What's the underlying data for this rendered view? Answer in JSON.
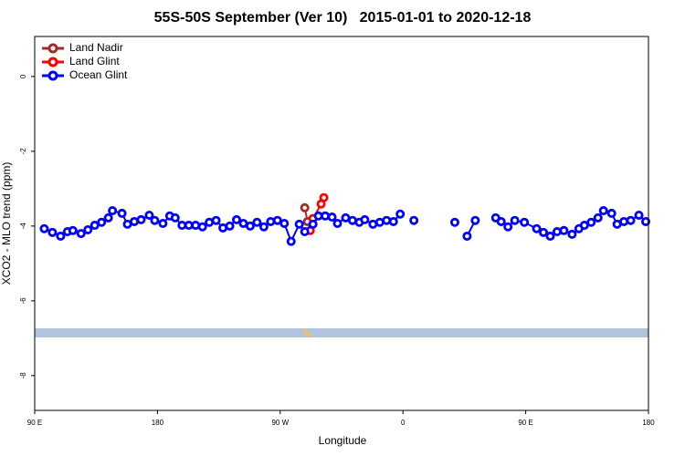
{
  "chart_data": {
    "type": "line",
    "title": "55S-50S September (Ver 10)   2015-01-01 to 2020-12-18",
    "x_label": "Longitude",
    "y_label": "XCO2 - MLO trend (ppm)",
    "xlim": [
      90,
      540
    ],
    "ylim": [
      -8.93,
      1.07
    ],
    "xticks": [
      {
        "value": 90,
        "label": "90 E"
      },
      {
        "value": 180,
        "label": "180"
      },
      {
        "value": 270,
        "label": "90 W"
      },
      {
        "value": 360,
        "label": "0"
      },
      {
        "value": 450,
        "label": "90 E"
      },
      {
        "value": 540,
        "label": "180"
      }
    ],
    "yticks": [
      0,
      -2,
      -4,
      -6,
      -8
    ],
    "legend": "top-left",
    "series": [
      {
        "name": "Land Nadir",
        "color": "#a52a2a",
        "x": [
          288,
          290
        ],
        "values": [
          -3.51,
          -3.88
        ]
      },
      {
        "name": "Land Glint",
        "color": "#ff0000",
        "x": [
          292,
          294,
          300,
          302
        ],
        "values": [
          -4.12,
          -3.8,
          -3.41,
          -3.24
        ]
      },
      {
        "name": "Ocean Glint",
        "color": "#0000ff",
        "x": [
          97,
          103,
          109,
          114,
          118,
          124,
          129,
          134,
          139,
          144,
          147,
          154,
          158,
          163,
          168,
          174,
          178,
          184,
          189,
          193,
          198,
          203,
          208,
          213,
          218,
          223,
          228,
          233,
          238,
          243,
          248,
          253,
          258,
          263,
          268,
          273,
          278,
          284,
          288,
          294,
          298,
          303,
          308,
          312,
          318,
          323,
          328,
          332,
          338,
          343,
          348,
          353,
          358,
          null,
          368,
          null,
          398,
          null,
          407,
          413,
          null,
          428,
          432,
          437,
          442,
          449,
          458,
          463,
          468,
          473,
          478,
          484,
          489,
          493,
          498,
          503,
          507,
          513,
          517,
          522,
          527,
          533,
          538
        ],
        "values": [
          -4.07,
          -4.17,
          -4.27,
          -4.15,
          -4.12,
          -4.2,
          -4.1,
          -3.98,
          -3.9,
          -3.78,
          -3.59,
          -3.66,
          -3.95,
          -3.88,
          -3.83,
          -3.71,
          -3.85,
          -3.93,
          -3.73,
          -3.78,
          -3.98,
          -3.98,
          -3.98,
          -4.02,
          -3.9,
          -3.85,
          -4.05,
          -4.0,
          -3.83,
          -3.93,
          -4.0,
          -3.9,
          -4.02,
          -3.88,
          -3.85,
          -3.93,
          -4.41,
          -3.95,
          -4.15,
          -3.95,
          -3.73,
          -3.73,
          -3.76,
          -3.93,
          -3.78,
          -3.85,
          -3.9,
          -3.83,
          -3.95,
          -3.9,
          -3.85,
          -3.88,
          -3.68,
          null,
          -3.85,
          null,
          -3.9,
          null,
          -4.27,
          -3.85,
          null,
          -3.78,
          -3.88,
          -4.02,
          -3.85,
          -3.9,
          -4.07,
          -4.17,
          -4.27,
          -4.15,
          -4.12,
          -4.22,
          -4.07,
          -3.98,
          -3.9,
          -3.78,
          -3.59,
          -3.66,
          -3.95,
          -3.88,
          -3.85,
          -3.71,
          -3.88
        ]
      }
    ]
  }
}
